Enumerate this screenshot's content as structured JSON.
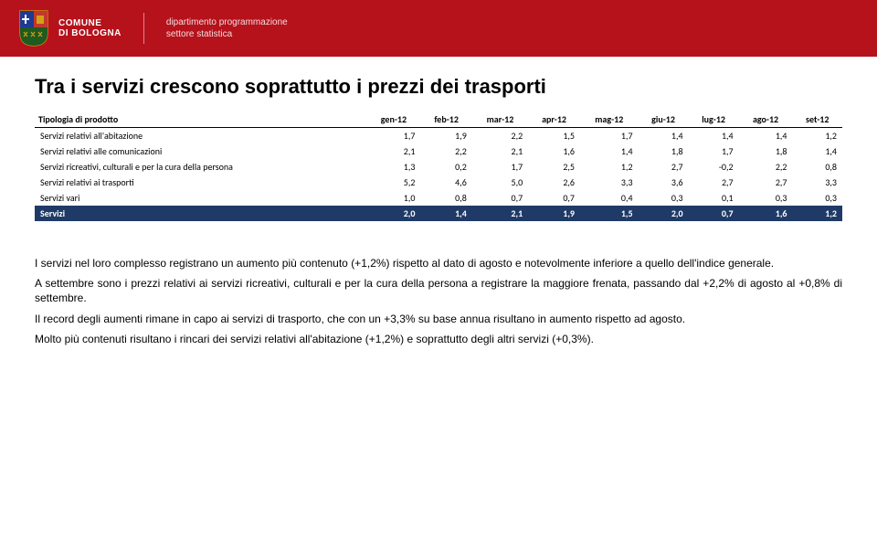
{
  "header": {
    "municipality_line1": "COMUNE",
    "municipality_line2": "DI BOLOGNA",
    "dept_line1": "dipartimento programmazione",
    "dept_line2": "settore statistica",
    "bar_color": "#b5121b",
    "text_color": "#ffffff"
  },
  "title": "Tra i servizi crescono soprattutto i prezzi dei trasporti",
  "table": {
    "header_label": "Tipologia di prodotto",
    "columns": [
      "gen-12",
      "feb-12",
      "mar-12",
      "apr-12",
      "mag-12",
      "giu-12",
      "lug-12",
      "ago-12",
      "set-12"
    ],
    "rows": [
      {
        "label": "Servizi relativi all'abitazione",
        "values": [
          "1,7",
          "1,9",
          "2,2",
          "1,5",
          "1,7",
          "1,4",
          "1,4",
          "1,4",
          "1,2"
        ],
        "total": false
      },
      {
        "label": "Servizi relativi alle comunicazioni",
        "values": [
          "2,1",
          "2,2",
          "2,1",
          "1,6",
          "1,4",
          "1,8",
          "1,7",
          "1,8",
          "1,4"
        ],
        "total": false
      },
      {
        "label": "Servizi ricreativi, culturali e per la cura della persona",
        "values": [
          "1,3",
          "0,2",
          "1,7",
          "2,5",
          "1,2",
          "2,7",
          "-0,2",
          "2,2",
          "0,8"
        ],
        "total": false
      },
      {
        "label": "Servizi relativi ai trasporti",
        "values": [
          "5,2",
          "4,6",
          "5,0",
          "2,6",
          "3,3",
          "3,6",
          "2,7",
          "2,7",
          "3,3"
        ],
        "total": false
      },
      {
        "label": "Servizi vari",
        "values": [
          "1,0",
          "0,8",
          "0,7",
          "0,7",
          "0,4",
          "0,3",
          "0,1",
          "0,3",
          "0,3"
        ],
        "total": false
      },
      {
        "label": "Servizi",
        "values": [
          "2,0",
          "1,4",
          "2,1",
          "1,9",
          "1,5",
          "2,0",
          "0,7",
          "1,6",
          "1,2"
        ],
        "total": true
      }
    ],
    "total_row_bg": "#1f3a66",
    "total_row_color": "#ffffff",
    "border_color": "#000000",
    "font_size": 10
  },
  "paragraphs": [
    "I servizi nel loro complesso registrano un aumento più contenuto (+1,2%) rispetto al dato di agosto e notevolmente inferiore a quello dell'indice generale.",
    "A settembre sono i prezzi relativi ai servizi ricreativi, culturali e per la cura della persona a registrare la maggiore frenata, passando dal +2,2% di agosto al  +0,8% di settembre.",
    "Il record degli aumenti rimane in capo ai servizi di trasporto, che con un +3,3% su base annua risultano in aumento rispetto ad agosto.",
    "Molto più contenuti risultano i rincari dei servizi relativi all'abitazione (+1,2%) e soprattutto degli altri servizi (+0,3%)."
  ],
  "body_font_size": 12
}
